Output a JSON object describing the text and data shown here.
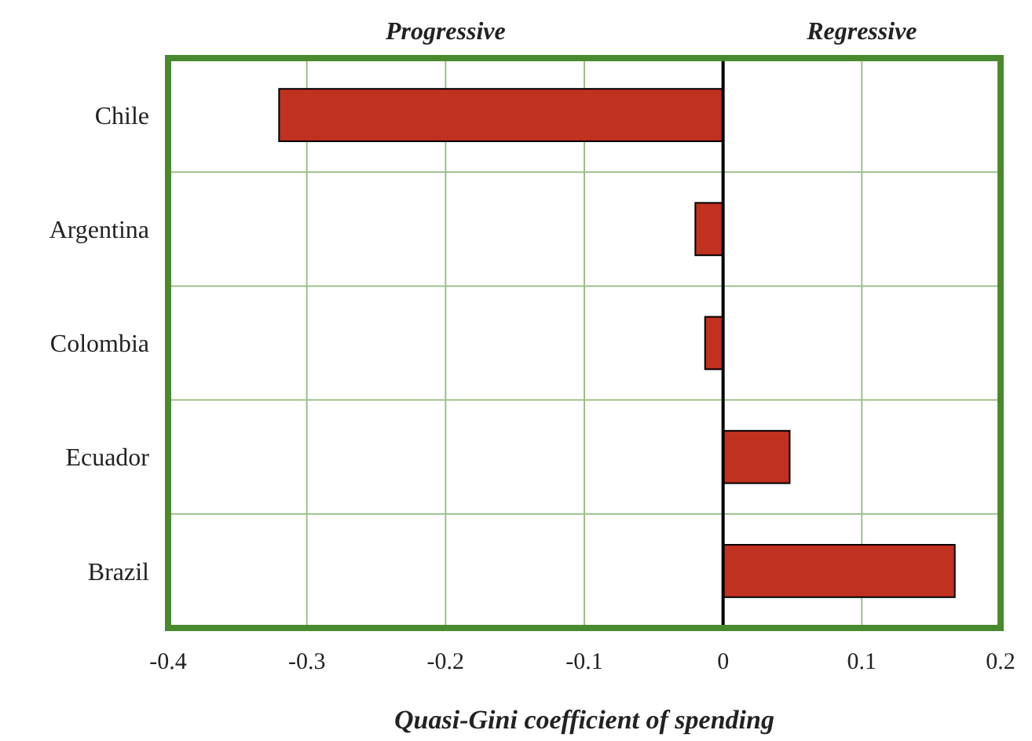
{
  "chart_data": {
    "type": "bar",
    "orientation": "horizontal",
    "xlabel": "Quasi-Gini coefficient of spending",
    "categories": [
      "Chile",
      "Argentina",
      "Colombia",
      "Ecuador",
      "Brazil"
    ],
    "values": [
      -0.32,
      -0.02,
      -0.013,
      0.048,
      0.167
    ],
    "color": "#c0311f",
    "xlim": [
      -0.4,
      0.2
    ],
    "xticks": [
      -0.4,
      -0.3,
      -0.2,
      -0.1,
      0,
      0.1,
      0.2
    ],
    "grid": true,
    "ref_lines": [
      {
        "axis": "x",
        "value": 0,
        "color": "#000000"
      }
    ],
    "annotations": [
      "Progressive",
      "Regressive"
    ]
  }
}
